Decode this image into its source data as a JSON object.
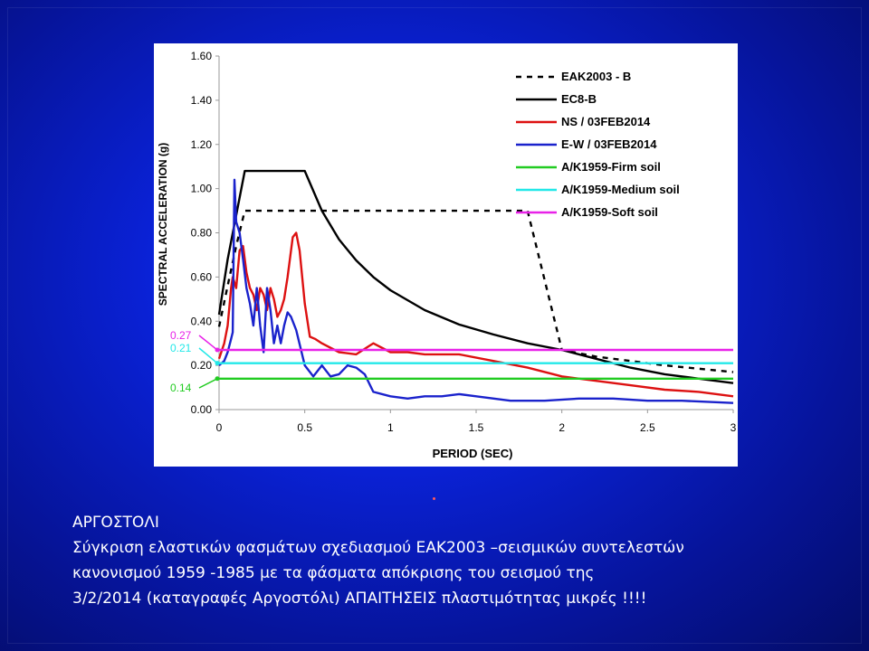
{
  "colors": {
    "EAK2003": "#000000",
    "EC8": "#000000",
    "NS": "#dd1111",
    "EW": "#1a22cc",
    "firm": "#22cc22",
    "medium": "#22e8e8",
    "soft": "#e822e8",
    "axis_marker_027": "#e822e8",
    "axis_marker_021": "#22e8e8",
    "axis_marker_014": "#22cc22"
  },
  "chart_data": {
    "type": "line",
    "xlabel": "PERIOD (SEC)",
    "ylabel": "SPECTRAL ACCELERATION (g)",
    "xlim": [
      0,
      3
    ],
    "ylim": [
      0,
      1.6
    ],
    "x_ticks": [
      "0",
      "0.5",
      "1",
      "1.5",
      "2",
      "2.5",
      "3"
    ],
    "y_ticks": [
      "0.00",
      "0.20",
      "0.40",
      "0.60",
      "0.80",
      "1.00",
      "1.20",
      "1.40",
      "1.60"
    ],
    "y_annotations": [
      {
        "label": "0.27",
        "value": 0.27,
        "color": "#e822e8"
      },
      {
        "label": "0.21",
        "value": 0.21,
        "color": "#22e8e8"
      },
      {
        "label": "0.14",
        "value": 0.14,
        "color": "#22cc22"
      }
    ],
    "grid": false,
    "legend_position": "top-right",
    "series": [
      {
        "name": "EAK2003 - B",
        "style": "dashed",
        "color": "#000000",
        "x": [
          0,
          0.05,
          0.1,
          0.15,
          0.3,
          0.4,
          0.6,
          0.8,
          1.0,
          1.2,
          1.4,
          1.6,
          1.8,
          2.0,
          2.2,
          2.4,
          2.6,
          2.8,
          3.0
        ],
        "y": [
          0.375,
          0.56,
          0.74,
          0.9,
          0.9,
          0.9,
          0.9,
          0.9,
          0.9,
          0.9,
          0.9,
          0.9,
          0.9,
          0.27,
          0.24,
          0.22,
          0.2,
          0.185,
          0.17
        ]
      },
      {
        "name": "EC8-B",
        "style": "solid",
        "color": "#000000",
        "x": [
          0,
          0.05,
          0.15,
          0.2,
          0.3,
          0.4,
          0.5,
          0.6,
          0.7,
          0.8,
          0.9,
          1.0,
          1.2,
          1.4,
          1.6,
          1.8,
          2.0,
          2.2,
          2.4,
          2.6,
          2.8,
          3.0
        ],
        "y": [
          0.43,
          0.68,
          1.08,
          1.08,
          1.08,
          1.08,
          1.08,
          0.9,
          0.77,
          0.675,
          0.6,
          0.54,
          0.45,
          0.385,
          0.34,
          0.3,
          0.27,
          0.23,
          0.19,
          0.16,
          0.14,
          0.12
        ]
      },
      {
        "name": "NS / 03FEB2014",
        "style": "solid",
        "color": "#dd1111",
        "x": [
          0,
          0.03,
          0.05,
          0.07,
          0.08,
          0.1,
          0.12,
          0.14,
          0.16,
          0.18,
          0.2,
          0.22,
          0.24,
          0.26,
          0.28,
          0.3,
          0.32,
          0.34,
          0.36,
          0.38,
          0.4,
          0.43,
          0.45,
          0.47,
          0.5,
          0.53,
          0.56,
          0.6,
          0.7,
          0.8,
          0.9,
          1.0,
          1.1,
          1.2,
          1.4,
          1.6,
          1.8,
          2.0,
          2.2,
          2.4,
          2.6,
          2.8,
          3.0
        ],
        "y": [
          0.23,
          0.3,
          0.38,
          0.55,
          0.6,
          0.55,
          0.72,
          0.74,
          0.62,
          0.55,
          0.52,
          0.45,
          0.55,
          0.52,
          0.45,
          0.55,
          0.5,
          0.42,
          0.45,
          0.5,
          0.6,
          0.78,
          0.8,
          0.72,
          0.48,
          0.33,
          0.32,
          0.3,
          0.26,
          0.25,
          0.3,
          0.26,
          0.26,
          0.25,
          0.25,
          0.22,
          0.19,
          0.15,
          0.13,
          0.11,
          0.09,
          0.08,
          0.06
        ]
      },
      {
        "name": "E-W / 03FEB2014",
        "style": "solid",
        "color": "#1a22cc",
        "x": [
          0,
          0.03,
          0.05,
          0.07,
          0.08,
          0.09,
          0.1,
          0.12,
          0.14,
          0.16,
          0.18,
          0.2,
          0.22,
          0.24,
          0.26,
          0.28,
          0.3,
          0.32,
          0.34,
          0.36,
          0.38,
          0.4,
          0.42,
          0.45,
          0.5,
          0.55,
          0.6,
          0.65,
          0.7,
          0.75,
          0.8,
          0.85,
          0.9,
          1.0,
          1.1,
          1.2,
          1.3,
          1.4,
          1.5,
          1.7,
          1.9,
          2.1,
          2.3,
          2.5,
          2.7,
          3.0
        ],
        "y": [
          0.2,
          0.22,
          0.26,
          0.32,
          0.35,
          1.04,
          0.85,
          0.8,
          0.68,
          0.55,
          0.48,
          0.38,
          0.55,
          0.38,
          0.26,
          0.55,
          0.45,
          0.3,
          0.38,
          0.3,
          0.38,
          0.44,
          0.42,
          0.36,
          0.2,
          0.15,
          0.2,
          0.15,
          0.16,
          0.2,
          0.19,
          0.16,
          0.08,
          0.06,
          0.05,
          0.06,
          0.06,
          0.07,
          0.06,
          0.04,
          0.04,
          0.05,
          0.05,
          0.04,
          0.04,
          0.03
        ]
      },
      {
        "name": "A/K1959-Firm soil",
        "style": "solid",
        "color": "#22cc22",
        "x": [
          0,
          3
        ],
        "y": [
          0.14,
          0.14
        ]
      },
      {
        "name": "A/K1959-Medium soil",
        "style": "solid",
        "color": "#22e8e8",
        "x": [
          0,
          3
        ],
        "y": [
          0.21,
          0.21
        ]
      },
      {
        "name": "A/K1959-Soft soil",
        "style": "solid",
        "color": "#e822e8",
        "x": [
          0,
          3
        ],
        "y": [
          0.27,
          0.27
        ]
      }
    ]
  },
  "caption": {
    "title": "ΑΡΓΟΣΤΟΛΙ",
    "line1": "Σύγκριση ελαστικών φασμάτων σχεδιασμού ΕΑΚ2003 –σεισμικών συντελεστών",
    "line2": " κανονισμού 1959 -1985 με τα φάσματα απόκρισης του σεισμού της",
    "line3": "3/2/2014 (καταγραφές Αργοστόλι) ΑΠΑΙΤΗΣΕΙΣ πλαστιμότητας μικρές !!!!"
  }
}
